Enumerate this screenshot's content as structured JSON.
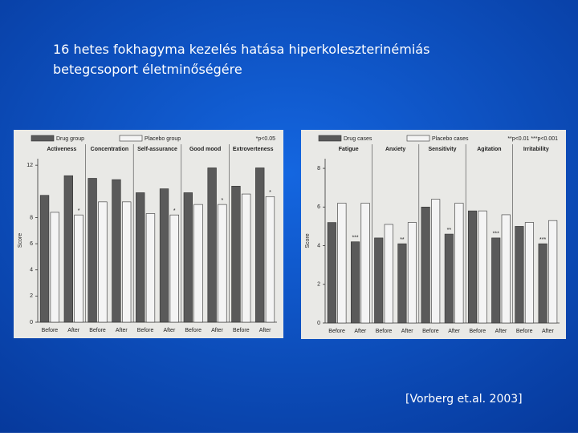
{
  "title_lines": [
    "16 hetes fokhagyma kezelés hatása hiperkoleszterinémiás",
    "betegcsoport életminőségére"
  ],
  "citation": "[Vorberg et.al. 2003]",
  "chart_data": [
    {
      "type": "bar",
      "ylabel": "Score",
      "note": "*p<0.05",
      "groups": [
        "Activeness",
        "Concentration",
        "Self-assurance",
        "Good mood",
        "Extroverteness"
      ],
      "categories": [
        "Before",
        "After",
        "Before",
        "After",
        "Before",
        "After",
        "Before",
        "After",
        "Before",
        "After"
      ],
      "series": [
        {
          "name": "Drug group",
          "color": "#5a5a5a",
          "values": [
            9.7,
            11.2,
            11.0,
            10.9,
            9.9,
            10.2,
            9.9,
            11.8,
            10.4,
            11.8
          ],
          "stars": [
            null,
            null,
            null,
            null,
            null,
            null,
            null,
            null,
            null,
            null
          ]
        },
        {
          "name": "Placebo group",
          "color": "#f4f4f4",
          "values": [
            8.4,
            8.2,
            9.2,
            9.2,
            8.3,
            8.2,
            9.0,
            9.0,
            9.8,
            9.6
          ],
          "stars": [
            null,
            "*",
            null,
            null,
            null,
            "*",
            null,
            "*",
            null,
            "*"
          ]
        }
      ],
      "ylim": [
        0,
        12.5
      ],
      "yticks": [
        0,
        2,
        4,
        6,
        8,
        12
      ]
    },
    {
      "type": "bar",
      "ylabel": "Score",
      "note": "**p<0.01  ***p<0.001",
      "groups": [
        "Fatigue",
        "Anxiety",
        "Sensitivity",
        "Agitation",
        "Irritability"
      ],
      "categories": [
        "Before",
        "After",
        "Before",
        "After",
        "Before",
        "After",
        "Before",
        "After",
        "Before",
        "After"
      ],
      "series": [
        {
          "name": "Drug cases",
          "color": "#5a5a5a",
          "values": [
            5.2,
            4.2,
            4.4,
            4.1,
            6.0,
            4.6,
            5.8,
            4.4,
            5.0,
            4.1
          ],
          "stars": [
            null,
            "***",
            null,
            "**",
            null,
            "**",
            null,
            "***",
            null,
            "***"
          ]
        },
        {
          "name": "Placebo cases",
          "color": "#f4f4f4",
          "values": [
            6.2,
            6.2,
            5.1,
            5.2,
            6.4,
            6.2,
            5.8,
            5.6,
            5.2,
            5.3
          ],
          "stars": [
            null,
            null,
            null,
            null,
            null,
            null,
            null,
            null,
            null,
            null
          ]
        }
      ],
      "ylim": [
        0,
        8.5
      ],
      "yticks": [
        0,
        2,
        4,
        6,
        8
      ]
    }
  ]
}
